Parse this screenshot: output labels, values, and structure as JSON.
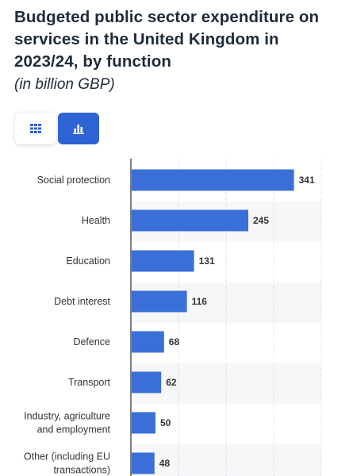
{
  "header": {
    "title": "Budgeted public sector expenditure on services in the United Kingdom in 2023/24, by function",
    "subtitle": "(in billion GBP)"
  },
  "view_toggle": {
    "table_icon": "grid-table-icon",
    "chart_icon": "bar-chart-icon",
    "active": "chart"
  },
  "colors": {
    "bar": "#3a6fd8",
    "active_toggle": "#2f63d3",
    "text": "#1d2b3a"
  },
  "chart_data": {
    "type": "bar",
    "orientation": "horizontal",
    "title": "Budgeted public sector expenditure on services in the United Kingdom in 2023/24, by function",
    "subtitle": "(in billion GBP)",
    "categories": [
      [
        "Social protection"
      ],
      [
        "Health"
      ],
      [
        "Education"
      ],
      [
        "Debt interest"
      ],
      [
        "Defence"
      ],
      [
        "Transport"
      ],
      [
        "Industry, agriculture",
        "and employment"
      ],
      [
        "Other (including EU",
        "transactions)"
      ]
    ],
    "values": [
      341,
      245,
      131,
      116,
      68,
      62,
      50,
      48
    ],
    "xlim": [
      0,
      400
    ],
    "grid": true,
    "data_labels": true
  }
}
